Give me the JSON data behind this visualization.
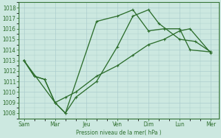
{
  "background_color": "#cce8e0",
  "grid_color": "#aacccc",
  "line_color": "#2d6e2d",
  "xlabel": "Pression niveau de la mer( hPa )",
  "ylim": [
    1007.5,
    1018.5
  ],
  "yticks": [
    1008,
    1009,
    1010,
    1011,
    1012,
    1013,
    1014,
    1015,
    1016,
    1017,
    1018
  ],
  "xtick_labels": [
    "Sam",
    "Mar",
    "Jeu",
    "Ven",
    "Dim",
    "Lun",
    "Mer"
  ],
  "xtick_positions": [
    0,
    24,
    48,
    72,
    96,
    120,
    144
  ],
  "xlim": [
    -4,
    150
  ],
  "line1_x": [
    0,
    8,
    16,
    24,
    32,
    40,
    56,
    72,
    84,
    96,
    104,
    120,
    132,
    144
  ],
  "line1_y": [
    1013.0,
    1011.5,
    1011.2,
    1009.0,
    1008.0,
    1009.5,
    1011.0,
    1014.3,
    1017.2,
    1017.8,
    1016.5,
    1015.0,
    1014.8,
    1013.8
  ],
  "line2_x": [
    0,
    8,
    16,
    24,
    32,
    56,
    72,
    84,
    96,
    108,
    120,
    128,
    144
  ],
  "line2_y": [
    1013.0,
    1011.5,
    1011.2,
    1009.0,
    1008.0,
    1016.7,
    1017.2,
    1017.8,
    1015.8,
    1016.0,
    1016.0,
    1014.0,
    1013.8
  ],
  "line3_x": [
    0,
    24,
    32,
    40,
    56,
    72,
    84,
    96,
    108,
    120,
    128,
    144
  ],
  "line3_y": [
    1013.0,
    1009.0,
    1009.5,
    1010.0,
    1011.5,
    1012.5,
    1013.5,
    1014.5,
    1015.0,
    1015.8,
    1016.0,
    1013.7
  ],
  "marker_size": 2.5,
  "line_width": 1.0,
  "tick_fontsize": 5.5
}
